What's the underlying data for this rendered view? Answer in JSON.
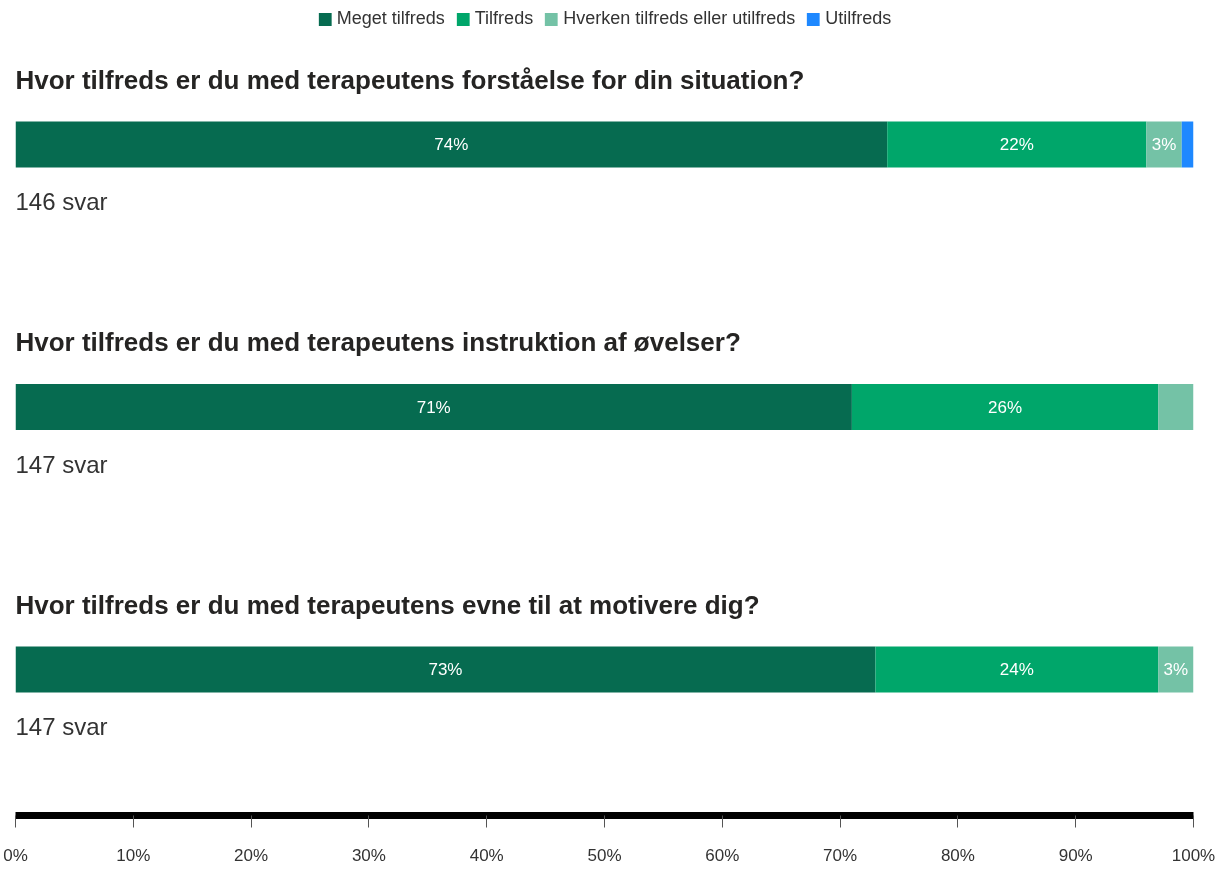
{
  "chart_data": {
    "type": "bar",
    "orientation": "horizontal",
    "stacked": true,
    "categories": [
      "Hvor tilfreds er du med terapeutens forståelse for din situation?",
      "Hvor tilfreds er du med terapeutens instruktion af øvelser?",
      "Hvor tilfreds er du med terapeutens evne til at motivere dig?"
    ],
    "series": [
      {
        "name": "Meget tilfreds",
        "color": "#066b50",
        "values": [
          74,
          71,
          73
        ],
        "value_labels": [
          "74%",
          "71%",
          "73%"
        ]
      },
      {
        "name": "Tilfreds",
        "color": "#00a66a",
        "values": [
          22,
          26,
          24
        ],
        "value_labels": [
          "22%",
          "26%",
          "24%"
        ]
      },
      {
        "name": "Hverken tilfreds eller utilfreds",
        "color": "#74c2a6",
        "values": [
          3,
          3,
          3
        ],
        "value_labels": [
          "3%",
          null,
          "3%"
        ]
      },
      {
        "name": "Utilfreds",
        "color": "#1e88ff",
        "values": [
          1,
          null,
          null
        ]
      }
    ],
    "xlim": [
      0,
      100
    ],
    "xticks": [
      {
        "value": 0,
        "label": "0%"
      },
      {
        "value": 10,
        "label": "10%"
      },
      {
        "value": 20,
        "label": "20%"
      },
      {
        "value": 30,
        "label": "30%"
      },
      {
        "value": 40,
        "label": "40%"
      },
      {
        "value": 50,
        "label": "50%"
      },
      {
        "value": 60,
        "label": "60%"
      },
      {
        "value": 70,
        "label": "70%"
      },
      {
        "value": 80,
        "label": "80%"
      },
      {
        "value": 90,
        "label": "90%"
      },
      {
        "value": 100,
        "label": "100%"
      }
    ],
    "annotations": [
      "146 svar",
      "147 svar",
      "147 svar"
    ],
    "legend": "top",
    "grid": false
  }
}
